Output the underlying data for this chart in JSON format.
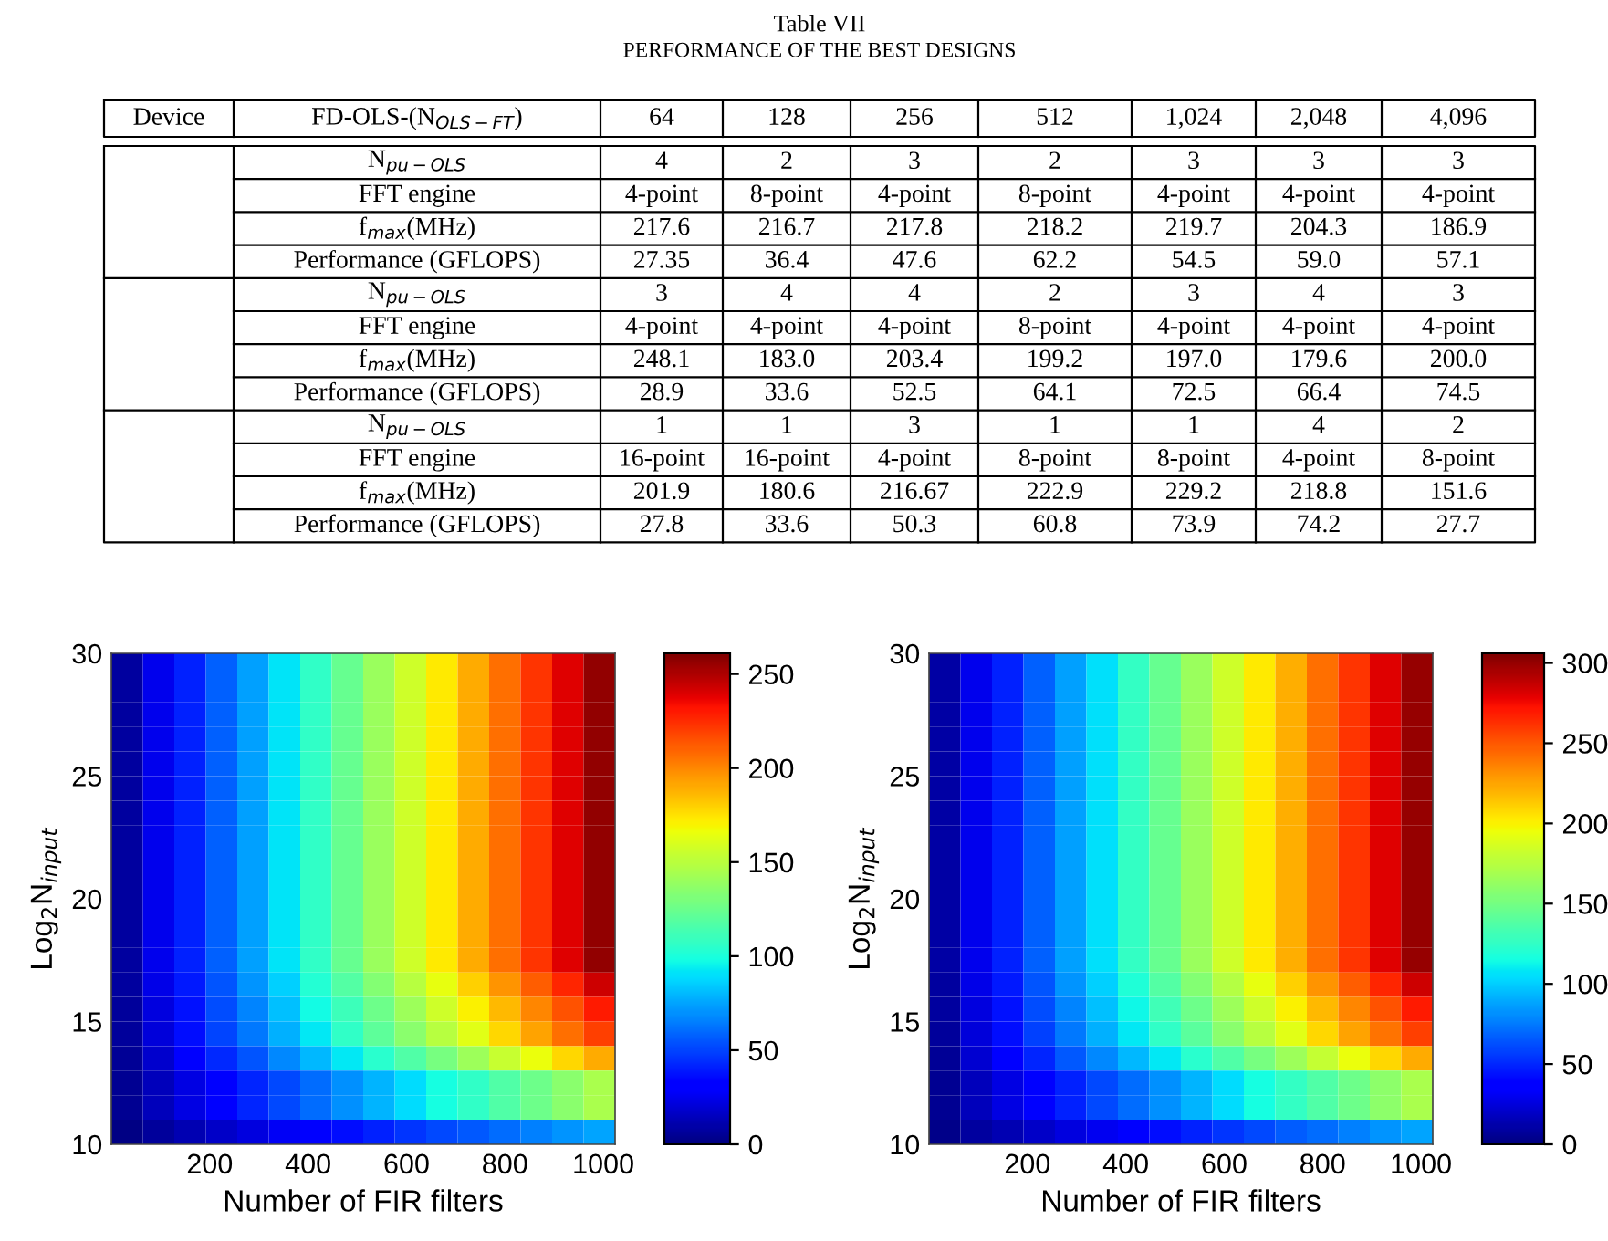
{
  "chart_data": [
    {
      "type": "other",
      "title": "Table VII",
      "subtitle": "PERFORMANCE OF THE BEST DESIGNS",
      "categories": [
        "Device",
        "FD-OLS-(N$_{OLS−FT}$)",
        "64",
        "128",
        "256",
        "512",
        "1,024",
        "2,048",
        "4,096"
      ],
      "y_categories": [
        "N$_{pu−OLS}$",
        "FFT engine",
        "f$_{max}$(MHz)",
        "Performance (GFLOPS)",
        "N$_{pu−OLS}$",
        "FFT engine",
        "f$_{max}$(MHz)",
        "Performance (GFLOPS)",
        "N$_{pu−OLS}$",
        "FFT engine",
        "f$_{max}$(MHz)",
        "Performance (GFLOPS)"
      ],
      "cell_labels": [
        [
          "4",
          "2",
          "3",
          "2",
          "3",
          "3",
          "3"
        ],
        [
          "4-point",
          "8-point",
          "4-point",
          "8-point",
          "4-point",
          "4-point",
          "4-point"
        ],
        [
          "217.6",
          "216.7",
          "217.8",
          "218.2",
          "219.7",
          "204.3",
          "186.9"
        ],
        [
          "27.35",
          "36.4",
          "47.6",
          "62.2",
          "54.5",
          "59.0",
          "57.1"
        ],
        [
          "3",
          "4",
          "4",
          "2",
          "3",
          "4",
          "3"
        ],
        [
          "4-point",
          "4-point",
          "4-point",
          "8-point",
          "4-point",
          "4-point",
          "4-point"
        ],
        [
          "248.1",
          "183.0",
          "203.4",
          "199.2",
          "197.0",
          "179.6",
          "200.0"
        ],
        [
          "28.9",
          "33.6",
          "52.5",
          "64.1",
          "72.5",
          "66.4",
          "74.5"
        ],
        [
          "1",
          "1",
          "3",
          "1",
          "1",
          "4",
          "2"
        ],
        [
          "16-point",
          "16-point",
          "4-point",
          "8-point",
          "8-point",
          "4-point",
          "8-point"
        ],
        [
          "201.9",
          "180.6",
          "216.67",
          "222.9",
          "229.2",
          "218.8",
          "151.6"
        ],
        [
          "27.8",
          "33.6",
          "50.3",
          "60.8",
          "73.9",
          "74.2",
          "27.7"
        ]
      ]
    },
    {
      "type": "heatmap",
      "xlabel": "Number of FIR filters",
      "ylabel": "Log$_{2}$N$_{input}$",
      "xlim": [
        0,
        1024
      ],
      "xticks": [
        200,
        400,
        600,
        800,
        1000
      ],
      "ylim": [
        10,
        30
      ],
      "yticks": [
        10,
        15,
        20,
        25,
        30
      ],
      "clim": [
        0,
        261
      ],
      "cticks": [
        0,
        50,
        100,
        150,
        200,
        250
      ],
      "cells": [
        [
          8,
          25,
          41,
          58,
          74,
          91,
          107,
          124,
          140,
          157,
          173,
          190,
          206,
          223,
          239,
          256
        ],
        [
          8,
          25,
          41,
          58,
          74,
          91,
          107,
          124,
          140,
          157,
          173,
          190,
          206,
          223,
          239,
          256
        ],
        [
          8,
          25,
          41,
          58,
          74,
          91,
          107,
          124,
          140,
          157,
          173,
          190,
          206,
          223,
          239,
          256
        ],
        [
          8,
          25,
          41,
          58,
          74,
          91,
          107,
          124,
          140,
          157,
          173,
          190,
          206,
          223,
          239,
          256
        ],
        [
          8,
          25,
          41,
          58,
          74,
          91,
          107,
          124,
          140,
          157,
          173,
          190,
          206,
          223,
          239,
          256
        ],
        [
          8,
          25,
          41,
          58,
          74,
          91,
          107,
          124,
          140,
          157,
          173,
          190,
          206,
          223,
          239,
          256
        ],
        [
          8,
          25,
          41,
          58,
          74,
          91,
          107,
          124,
          140,
          157,
          173,
          190,
          206,
          223,
          239,
          256
        ],
        [
          8,
          25,
          41,
          58,
          74,
          91,
          107,
          124,
          140,
          157,
          173,
          190,
          206,
          223,
          239,
          256
        ],
        [
          8,
          25,
          41,
          58,
          74,
          91,
          107,
          124,
          140,
          157,
          173,
          190,
          206,
          223,
          239,
          256
        ],
        [
          8,
          25,
          41,
          58,
          74,
          91,
          107,
          124,
          140,
          157,
          173,
          190,
          206,
          223,
          239,
          256
        ],
        [
          8,
          25,
          41,
          58,
          74,
          91,
          107,
          124,
          140,
          157,
          173,
          190,
          206,
          223,
          239,
          256
        ],
        [
          8,
          25,
          41,
          58,
          74,
          91,
          107,
          124,
          140,
          157,
          173,
          190,
          206,
          223,
          239,
          256
        ],
        [
          8,
          25,
          41,
          58,
          74,
          91,
          107,
          124,
          140,
          157,
          173,
          190,
          206,
          223,
          239,
          256
        ],
        [
          8,
          24,
          39,
          55,
          71,
          86,
          102,
          118,
          133,
          149,
          165,
          180,
          196,
          212,
          227,
          243
        ],
        [
          7,
          22,
          37,
          52,
          67,
          82,
          97,
          111,
          126,
          141,
          156,
          171,
          186,
          200,
          215,
          230
        ],
        [
          7,
          21,
          36,
          50,
          64,
          78,
          92,
          107,
          121,
          135,
          149,
          163,
          178,
          192,
          206,
          220
        ],
        [
          6,
          18,
          31,
          43,
          55,
          68,
          80,
          92,
          104,
          117,
          129,
          141,
          154,
          166,
          178,
          190
        ],
        [
          5,
          14,
          23,
          33,
          42,
          51,
          61,
          70,
          79,
          89,
          98,
          107,
          117,
          126,
          135,
          145
        ],
        [
          5,
          14,
          23,
          33,
          42,
          51,
          61,
          70,
          79,
          89,
          98,
          107,
          117,
          126,
          135,
          145
        ],
        [
          2,
          7,
          12,
          17,
          22,
          27,
          32,
          36,
          41,
          46,
          51,
          56,
          61,
          66,
          71,
          75
        ]
      ]
    },
    {
      "type": "heatmap",
      "xlabel": "Number of FIR filters",
      "ylabel": "Log$_{2}$N$_{input}$",
      "xlim": [
        0,
        1024
      ],
      "xticks": [
        200,
        400,
        600,
        800,
        1000
      ],
      "ylim": [
        10,
        30
      ],
      "yticks": [
        10,
        15,
        20,
        25,
        30
      ],
      "clim": [
        0,
        306
      ],
      "cticks": [
        0,
        50,
        100,
        150,
        200,
        250,
        300
      ],
      "cells": [
        [
          10,
          29,
          48,
          68,
          87,
          106,
          126,
          145,
          164,
          184,
          203,
          222,
          242,
          261,
          280,
          300
        ],
        [
          10,
          29,
          48,
          68,
          87,
          106,
          126,
          145,
          164,
          184,
          203,
          222,
          242,
          261,
          280,
          300
        ],
        [
          10,
          29,
          48,
          68,
          87,
          106,
          126,
          145,
          164,
          184,
          203,
          222,
          242,
          261,
          280,
          300
        ],
        [
          10,
          29,
          48,
          68,
          87,
          106,
          126,
          145,
          164,
          184,
          203,
          222,
          242,
          261,
          280,
          300
        ],
        [
          10,
          29,
          48,
          68,
          87,
          106,
          126,
          145,
          164,
          184,
          203,
          222,
          242,
          261,
          280,
          300
        ],
        [
          10,
          29,
          48,
          68,
          87,
          106,
          126,
          145,
          164,
          184,
          203,
          222,
          242,
          261,
          280,
          300
        ],
        [
          10,
          29,
          48,
          68,
          87,
          106,
          126,
          145,
          164,
          184,
          203,
          222,
          242,
          261,
          280,
          300
        ],
        [
          10,
          29,
          48,
          68,
          87,
          106,
          126,
          145,
          164,
          184,
          203,
          222,
          242,
          261,
          280,
          300
        ],
        [
          10,
          29,
          48,
          68,
          87,
          106,
          126,
          145,
          164,
          184,
          203,
          222,
          242,
          261,
          280,
          300
        ],
        [
          10,
          29,
          48,
          68,
          87,
          106,
          126,
          145,
          164,
          184,
          203,
          222,
          242,
          261,
          280,
          300
        ],
        [
          10,
          29,
          48,
          68,
          87,
          106,
          126,
          145,
          164,
          184,
          203,
          222,
          242,
          261,
          280,
          300
        ],
        [
          10,
          29,
          48,
          68,
          87,
          106,
          126,
          145,
          164,
          184,
          203,
          222,
          242,
          261,
          280,
          300
        ],
        [
          10,
          29,
          48,
          68,
          87,
          106,
          126,
          145,
          164,
          184,
          203,
          222,
          242,
          261,
          280,
          300
        ],
        [
          9,
          28,
          46,
          64,
          83,
          101,
          119,
          138,
          156,
          174,
          193,
          211,
          230,
          248,
          266,
          285
        ],
        [
          9,
          26,
          44,
          61,
          78,
          96,
          113,
          131,
          148,
          165,
          183,
          200,
          218,
          235,
          252,
          270
        ],
        [
          8,
          25,
          42,
          58,
          75,
          92,
          108,
          125,
          141,
          158,
          175,
          191,
          208,
          225,
          241,
          258
        ],
        [
          7,
          22,
          36,
          50,
          65,
          79,
          94,
          108,
          122,
          137,
          151,
          166,
          180,
          194,
          209,
          223
        ],
        [
          5,
          16,
          27,
          38,
          49,
          60,
          71,
          82,
          93,
          104,
          115,
          126,
          137,
          148,
          159,
          170
        ],
        [
          5,
          16,
          27,
          38,
          49,
          60,
          71,
          82,
          93,
          104,
          115,
          126,
          137,
          148,
          159,
          170
        ],
        [
          3,
          9,
          14,
          20,
          26,
          31,
          37,
          43,
          48,
          54,
          60,
          66,
          71,
          77,
          83,
          88
        ]
      ]
    }
  ]
}
